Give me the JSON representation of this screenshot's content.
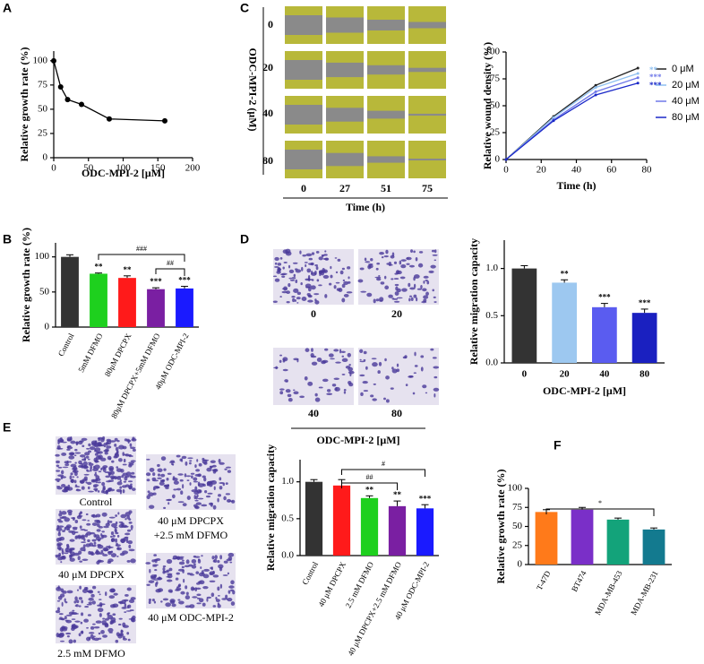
{
  "chart_data": [
    {
      "panel": "A",
      "type": "scatter",
      "x_label": "ODC-MPI-2 [μM]",
      "y_label": "Relative growth rate (%)",
      "x": [
        0,
        10,
        20,
        40,
        80,
        160
      ],
      "values": [
        100,
        73,
        60,
        55,
        40,
        38
      ],
      "color": "#000000",
      "xlim": [
        0,
        200
      ],
      "xticks": [
        0,
        50,
        100,
        150,
        200
      ],
      "ylim": [
        0,
        110
      ],
      "yticks": [
        0,
        25,
        50,
        75,
        100
      ]
    },
    {
      "panel": "C",
      "type": "line",
      "x_label": "Time (h)",
      "y_label": "Relative wound density (%)",
      "x": [
        0,
        27,
        51,
        75
      ],
      "xlim": [
        0,
        80
      ],
      "xticks": [
        0,
        20,
        40,
        60,
        80
      ],
      "ylim": [
        0,
        100
      ],
      "yticks": [
        0,
        25,
        50,
        75,
        100
      ],
      "series": [
        {
          "name": "0 μM",
          "color": "#222222",
          "values": [
            0,
            40,
            69,
            85
          ]
        },
        {
          "name": "20 μM",
          "color": "#8fc0f0",
          "values": [
            0,
            39,
            67,
            80
          ],
          "significance": "**"
        },
        {
          "name": "40 μM",
          "color": "#6f78e8",
          "values": [
            0,
            37,
            63,
            76
          ],
          "significance": "***"
        },
        {
          "name": "80 μM",
          "color": "#1a28c8",
          "values": [
            0,
            36,
            60,
            71
          ],
          "significance": "***"
        }
      ]
    },
    {
      "panel": "B",
      "type": "bar",
      "y_label": "Relative growth rate (%)",
      "categories": [
        "Control",
        "5mM DFMO",
        "80μM DPCPX",
        "80μM DPCPX+5mM DFMO",
        "40μM ODC-MPI-2"
      ],
      "values": [
        100,
        76,
        70,
        54,
        55
      ],
      "errors": [
        3,
        1,
        3,
        2,
        3
      ],
      "colors": [
        "#333333",
        "#1ed01e",
        "#ff1a1a",
        "#7a1fa2",
        "#1a1aff"
      ],
      "significance": [
        null,
        "**",
        "**",
        "***",
        "***"
      ],
      "comparisons": [
        "###",
        "##"
      ],
      "ylim": [
        0,
        120
      ],
      "yticks": [
        0,
        50,
        100
      ]
    },
    {
      "panel": "D",
      "type": "bar",
      "x_label": "ODC-MPI-2 [μM]",
      "y_label": "Relative migration capacity",
      "categories": [
        "0",
        "20",
        "40",
        "80"
      ],
      "values": [
        1.0,
        0.85,
        0.59,
        0.53
      ],
      "errors": [
        0.03,
        0.03,
        0.04,
        0.04
      ],
      "colors": [
        "#333333",
        "#9dc8f0",
        "#5a5cf0",
        "#1a20c0"
      ],
      "significance": [
        null,
        "**",
        "***",
        "***"
      ],
      "comparisons": [],
      "ylim": [
        0,
        1.3
      ],
      "yticks": [
        {
          "value": 0,
          "label": "0.0"
        },
        0.5,
        {
          "value": 1,
          "label": "1.0"
        }
      ]
    },
    {
      "panel": "E",
      "type": "bar",
      "y_label": "Relative migration capacity",
      "categories": [
        "Control",
        "40 μM DPCPX",
        "2.5 mM DFMO",
        "40 μM DPCPX+2.5 mM DFMO",
        "40 μM ODC-MPI-2"
      ],
      "values": [
        1.0,
        0.95,
        0.78,
        0.67,
        0.64
      ],
      "errors": [
        0.03,
        0.08,
        0.03,
        0.07,
        0.05
      ],
      "colors": [
        "#333333",
        "#ff1a1a",
        "#1ed01e",
        "#7a1fa2",
        "#1a1aff"
      ],
      "significance": [
        null,
        null,
        "**",
        "**",
        "***"
      ],
      "comparisons": [
        "#",
        "##"
      ],
      "ylim": [
        0,
        1.3
      ],
      "yticks": [
        {
          "value": 0,
          "label": "0.0"
        },
        0.5,
        {
          "value": 1,
          "label": "1.0"
        }
      ]
    },
    {
      "panel": "F",
      "type": "bar",
      "y_label": "Relative growth rate (%)",
      "categories": [
        "T-47D",
        "BT474",
        "MDA-MB-453",
        "MDA-MB-231"
      ],
      "values": [
        69,
        72,
        59,
        46
      ],
      "errors": [
        3,
        3,
        2,
        2
      ],
      "colors": [
        "#ff7a1a",
        "#7a2fc8",
        "#13a37a",
        "#137a8f"
      ],
      "significance": [
        null,
        null,
        null,
        null
      ],
      "comparisons": [
        "*"
      ],
      "ylim": [
        0,
        100
      ],
      "yticks": [
        0,
        25,
        50,
        75,
        100
      ]
    }
  ],
  "image_labels": {
    "C": {
      "axis_title": "ODC-MPI-2 (μM)",
      "rows": [
        "0",
        "20",
        "40",
        "80"
      ],
      "cols": [
        "0",
        "27",
        "51",
        "75"
      ],
      "col_title": "Time (h)"
    },
    "D": {
      "tiles": [
        "0",
        "20",
        "40",
        "80"
      ],
      "title": "ODC-MPI-2 [μM]"
    },
    "E": {
      "tiles": [
        "Control",
        "40 μM DPCPX",
        "2.5 mM DFMO",
        "40 μM DPCPX",
        "+2.5 mM DFMO",
        "40 μM ODC-MPI-2"
      ]
    }
  }
}
